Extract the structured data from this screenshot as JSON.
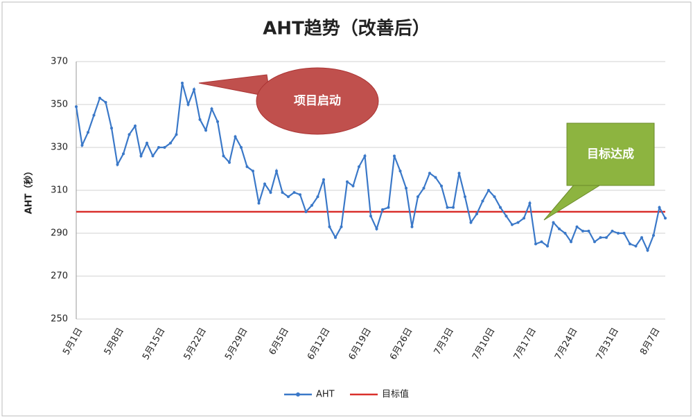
{
  "chart_data": {
    "type": "line",
    "title": "AHT趋势（改善后）",
    "y_label": "AHT（秒）",
    "categories": [
      "5月1日",
      null,
      null,
      null,
      null,
      null,
      null,
      "5月8日",
      null,
      null,
      null,
      null,
      null,
      null,
      "5月15日",
      null,
      null,
      null,
      null,
      null,
      null,
      "5月22日",
      null,
      null,
      null,
      null,
      null,
      null,
      "5月29日",
      null,
      null,
      null,
      null,
      null,
      null,
      "6月5日",
      null,
      null,
      null,
      null,
      null,
      null,
      "6月12日",
      null,
      null,
      null,
      null,
      null,
      null,
      "6月19日",
      null,
      null,
      null,
      null,
      null,
      null,
      "6月26日",
      null,
      null,
      null,
      null,
      null,
      null,
      "7月3日",
      null,
      null,
      null,
      null,
      null,
      null,
      "7月10日",
      null,
      null,
      null,
      null,
      null,
      null,
      "7月17日",
      null,
      null,
      null,
      null,
      null,
      null,
      "7月24日",
      null,
      null,
      null,
      null,
      null,
      null,
      "7月31日",
      null,
      null,
      null,
      null,
      null,
      null,
      "8月7日",
      null,
      null
    ],
    "series": [
      {
        "name": "AHT",
        "color": "#3a78c8",
        "values": [
          349,
          331,
          337,
          345,
          353,
          351,
          339,
          322,
          327,
          336,
          340,
          326,
          332,
          326,
          330,
          330,
          332,
          336,
          360,
          350,
          357,
          343,
          338,
          348,
          342,
          326,
          323,
          335,
          330,
          321,
          319,
          304,
          313,
          309,
          319,
          309,
          307,
          309,
          308,
          300,
          303,
          307,
          315,
          293,
          288,
          293,
          314,
          312,
          321,
          326,
          298,
          292,
          301,
          302,
          326,
          319,
          311,
          293,
          307,
          311,
          318,
          316,
          312,
          302,
          302,
          318,
          307,
          295,
          299,
          305,
          310,
          307,
          302,
          298,
          294,
          295,
          297,
          304,
          285,
          286,
          284,
          295,
          292,
          290,
          286,
          293,
          291,
          291,
          286,
          288,
          288,
          291,
          290,
          290,
          285,
          284,
          288,
          282,
          289,
          302,
          297
        ]
      }
    ],
    "target": {
      "name": "目标值",
      "value": 300,
      "color": "#d9302c"
    },
    "ylim": [
      250,
      370
    ],
    "yticks": [
      250,
      270,
      290,
      310,
      330,
      350,
      370
    ],
    "grid": true,
    "annotations": [
      {
        "text": "项目启动",
        "color": "#c0504d"
      },
      {
        "text": "目标达成",
        "color": "#8db440"
      }
    ]
  }
}
